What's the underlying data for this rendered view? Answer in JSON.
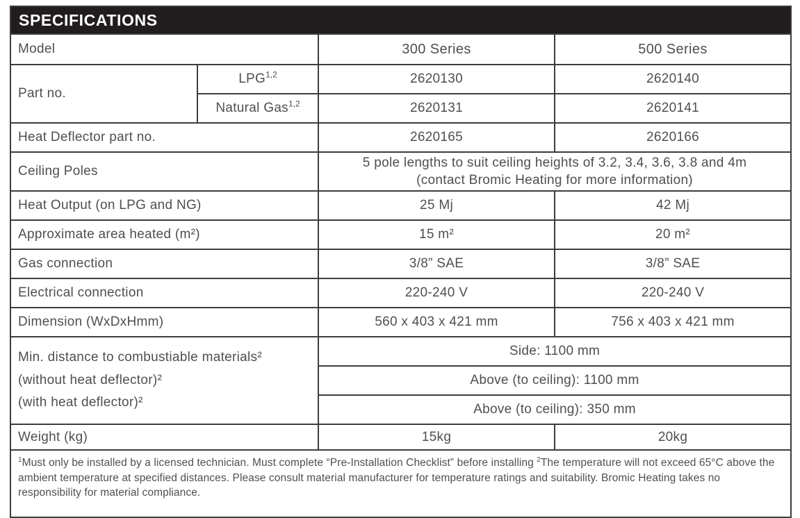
{
  "colors": {
    "header_bg": "#211d1e",
    "header_text": "#ffffff",
    "border": "#3d3d3d",
    "text": "#4f4f4f",
    "page_bg": "#ffffff"
  },
  "title": "SPECIFICATIONS",
  "columns": {
    "model_label": "Model",
    "series300": "300 Series",
    "series500": "500 Series"
  },
  "rows": {
    "part_no": {
      "label": "Part no.",
      "lpg": {
        "base": "LPG",
        "sup": "1,2",
        "series300": "2620130",
        "series500": "2620140"
      },
      "natural_gas": {
        "base": "Natural Gas",
        "sup": "1,2",
        "series300": "2620131",
        "series500": "2620141"
      }
    },
    "heat_deflector": {
      "label": "Heat Deflector part no.",
      "series300": "2620165",
      "series500": "2620166"
    },
    "ceiling_poles": {
      "label": "Ceiling Poles",
      "value": "5 pole lengths to suit ceiling heights of 3.2, 3.4, 3.6, 3.8 and 4m\n(contact Bromic Heating for more information)"
    },
    "heat_output": {
      "label": "Heat Output (on LPG and NG)",
      "series300": "25 Mj",
      "series500": "42 Mj"
    },
    "area_heated": {
      "label": "Approximate area heated (m²)",
      "series300": "15 m²",
      "series500": "20 m²"
    },
    "gas_connection": {
      "label": "Gas connection",
      "series300": "3/8” SAE",
      "series500": "3/8” SAE"
    },
    "electrical_connection": {
      "label": "Electrical connection",
      "series300": "220-240 V",
      "series500": "220-240 V"
    },
    "dimension": {
      "label": "Dimension (WxDxHmm)",
      "series300": "560 x 403 x 421 mm",
      "series500": "756 x 403 x 421 mm"
    },
    "min_distance": {
      "label": "Min. distance to combustiable materials²\n(without heat deflector)²\n(with heat deflector)²",
      "side": "Side: 1100 mm",
      "above_without_deflector": "Above (to ceiling): 1100 mm",
      "above_with_deflector": "Above (to ceiling): 350 mm"
    },
    "weight": {
      "label": "Weight (kg)",
      "series300": "15kg",
      "series500": "20kg"
    }
  },
  "footnote": {
    "sup1": "1",
    "text1": "Must only be installed by a licensed technician. Must complete “Pre-Installation Checklist” before installing  ",
    "sup2": "2",
    "text2": "The temperature will not exceed 65°C above the ambient temperature at specified distances. Please consult material manufacturer for temperature ratings and suitability. Bromic Heating takes no responsibility for material compliance."
  }
}
